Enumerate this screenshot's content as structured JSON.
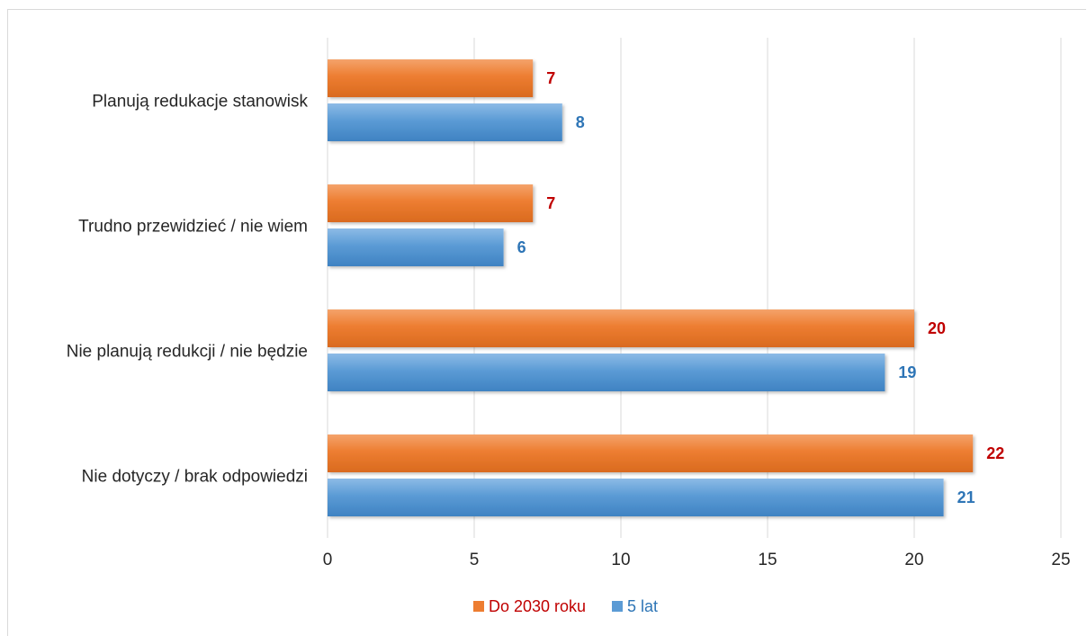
{
  "chart_data": {
    "type": "bar",
    "orientation": "horizontal",
    "categories": [
      "Planują redukacje stanowisk",
      "Trudno przewidzieć / nie wiem",
      "Nie planują redukcji / nie będzie",
      "Nie dotyczy / brak odpowiedzi"
    ],
    "series": [
      {
        "name": "Do 2030 roku",
        "values": [
          7,
          7,
          20,
          22
        ],
        "color": "#ed7d31",
        "label_color": "#c00000"
      },
      {
        "name": "5 lat",
        "values": [
          8,
          6,
          19,
          21
        ],
        "color": "#5b9bd5",
        "label_color": "#2e75b6"
      }
    ],
    "xlim": [
      0,
      25
    ],
    "xticks": [
      "0",
      "5",
      "10",
      "15",
      "20",
      "25"
    ],
    "grid": true,
    "legend_position": "bottom",
    "data_labels": true,
    "title": "",
    "xlabel": "",
    "ylabel": ""
  }
}
